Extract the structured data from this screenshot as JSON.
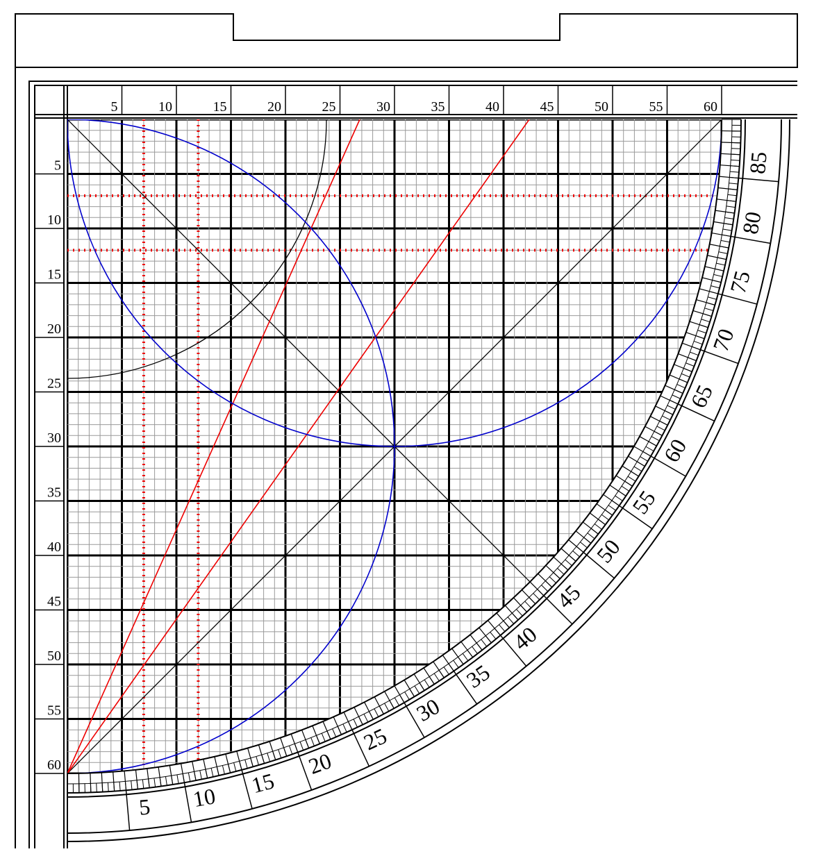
{
  "top_scale": [
    5,
    10,
    15,
    20,
    25,
    30,
    35,
    40,
    45,
    50,
    55,
    60
  ],
  "left_scale": [
    5,
    10,
    15,
    20,
    25,
    30,
    35,
    40,
    45,
    50,
    55,
    60
  ],
  "arc_scale": [
    5,
    10,
    15,
    20,
    25,
    30,
    35,
    40,
    45,
    50,
    55,
    60,
    65,
    70,
    75,
    80,
    85
  ]
}
